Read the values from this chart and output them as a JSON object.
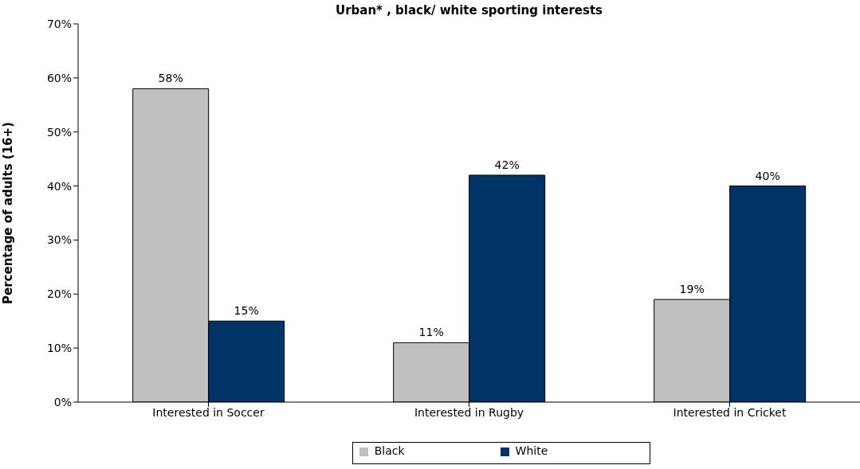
{
  "chart_data": {
    "type": "bar",
    "title": "Urban* , black/ white sporting interests",
    "ylabel": "Percentage of adults (16+)",
    "categories": [
      "Interested in Soccer",
      "Interested in Rugby",
      "Interested in Cricket"
    ],
    "series": [
      {
        "name": "Black",
        "color": "#c0c0c0",
        "values": [
          58,
          11,
          19
        ],
        "value_labels": [
          "58%",
          "11%",
          "19%"
        ]
      },
      {
        "name": "White",
        "color": "#003366",
        "values": [
          15,
          42,
          40
        ],
        "value_labels": [
          "15%",
          "42%",
          "40%"
        ]
      }
    ],
    "ylim": [
      0,
      70
    ],
    "yticks": [
      {
        "value": 0,
        "label": "0%"
      },
      {
        "value": 10,
        "label": "10%"
      },
      {
        "value": 20,
        "label": "20%"
      },
      {
        "value": 30,
        "label": "30%"
      },
      {
        "value": 40,
        "label": "40%"
      },
      {
        "value": 50,
        "label": "50%"
      },
      {
        "value": 60,
        "label": "60%"
      },
      {
        "value": 70,
        "label": "70%"
      }
    ],
    "legend": "bottom"
  }
}
